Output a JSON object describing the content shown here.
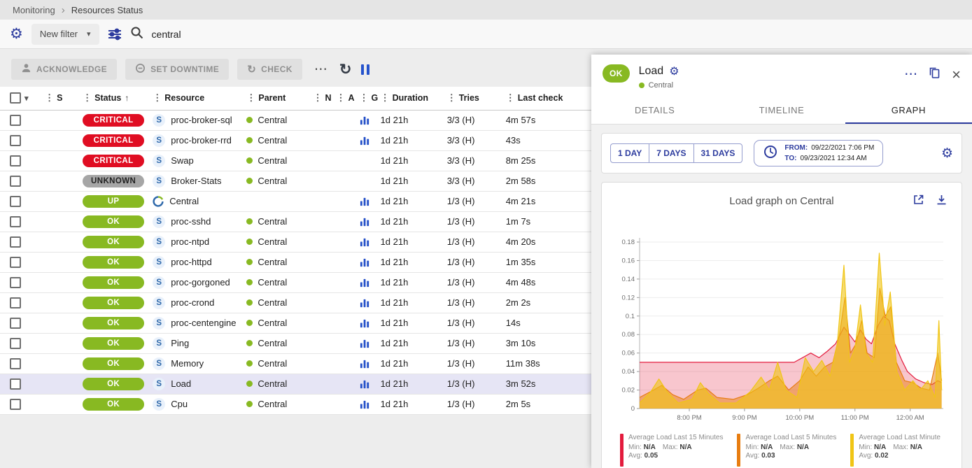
{
  "breadcrumb": {
    "items": [
      "Monitoring",
      "Resources Status"
    ]
  },
  "filter": {
    "preset_label": "New filter",
    "search_value": "central"
  },
  "toolbar": {
    "acknowledge": "ACKNOWLEDGE",
    "set_downtime": "SET DOWNTIME",
    "check": "CHECK"
  },
  "icons": {
    "settings_gear": "⚙",
    "more_horizontal": "⋯",
    "refresh": "↻",
    "caret_down": "▾",
    "drag_dots": "⋮",
    "sort_asc": "↑",
    "breadcrumb_chevron": "›",
    "close": "×"
  },
  "colors": {
    "accent_blue": "#2c3b9e",
    "status_ok_green": "#88b922",
    "status_critical_red": "#e00d22",
    "status_unknown_gray": "#a6a6a6",
    "selected_row": "#e6e5f5",
    "series_red": "#e31b3d",
    "series_orange": "#e87d10",
    "series_yellow": "#f0c515"
  },
  "table": {
    "columns": [
      {
        "id": "sev",
        "label": "S"
      },
      {
        "id": "status",
        "label": "Status",
        "sorted": "asc"
      },
      {
        "id": "res",
        "label": "Resource"
      },
      {
        "id": "parent",
        "label": "Parent"
      },
      {
        "id": "n",
        "label": "N"
      },
      {
        "id": "a",
        "label": "A"
      },
      {
        "id": "g",
        "label": "G"
      },
      {
        "id": "dur",
        "label": "Duration"
      },
      {
        "id": "tries",
        "label": "Tries"
      },
      {
        "id": "last",
        "label": "Last check"
      }
    ],
    "rows": [
      {
        "status": "CRITICAL",
        "kind": "critical",
        "type": "service",
        "resource": "proc-broker-sql",
        "parent": "Central",
        "graph": true,
        "duration": "1d 21h",
        "tries": "3/3 (H)",
        "last_check": "4m 57s",
        "selected": false
      },
      {
        "status": "CRITICAL",
        "kind": "critical",
        "type": "service",
        "resource": "proc-broker-rrd",
        "parent": "Central",
        "graph": true,
        "duration": "1d 21h",
        "tries": "3/3 (H)",
        "last_check": "43s",
        "selected": false
      },
      {
        "status": "CRITICAL",
        "kind": "critical",
        "type": "service",
        "resource": "Swap",
        "parent": "Central",
        "graph": false,
        "duration": "1d 21h",
        "tries": "3/3 (H)",
        "last_check": "8m 25s",
        "selected": false
      },
      {
        "status": "UNKNOWN",
        "kind": "unknown",
        "type": "service",
        "resource": "Broker-Stats",
        "parent": "Central",
        "graph": false,
        "duration": "1d 21h",
        "tries": "3/3 (H)",
        "last_check": "2m 58s",
        "selected": false
      },
      {
        "status": "UP",
        "kind": "up",
        "type": "host",
        "resource": "Central",
        "parent": "",
        "graph": true,
        "duration": "1d 21h",
        "tries": "1/3 (H)",
        "last_check": "4m 21s",
        "selected": false
      },
      {
        "status": "OK",
        "kind": "ok",
        "type": "service",
        "resource": "proc-sshd",
        "parent": "Central",
        "graph": true,
        "duration": "1d 21h",
        "tries": "1/3 (H)",
        "last_check": "1m 7s",
        "selected": false
      },
      {
        "status": "OK",
        "kind": "ok",
        "type": "service",
        "resource": "proc-ntpd",
        "parent": "Central",
        "graph": true,
        "duration": "1d 21h",
        "tries": "1/3 (H)",
        "last_check": "4m 20s",
        "selected": false
      },
      {
        "status": "OK",
        "kind": "ok",
        "type": "service",
        "resource": "proc-httpd",
        "parent": "Central",
        "graph": true,
        "duration": "1d 21h",
        "tries": "1/3 (H)",
        "last_check": "1m 35s",
        "selected": false
      },
      {
        "status": "OK",
        "kind": "ok",
        "type": "service",
        "resource": "proc-gorgoned",
        "parent": "Central",
        "graph": true,
        "duration": "1d 21h",
        "tries": "1/3 (H)",
        "last_check": "4m 48s",
        "selected": false
      },
      {
        "status": "OK",
        "kind": "ok",
        "type": "service",
        "resource": "proc-crond",
        "parent": "Central",
        "graph": true,
        "duration": "1d 21h",
        "tries": "1/3 (H)",
        "last_check": "2m 2s",
        "selected": false
      },
      {
        "status": "OK",
        "kind": "ok",
        "type": "service",
        "resource": "proc-centengine",
        "parent": "Central",
        "graph": true,
        "duration": "1d 21h",
        "tries": "1/3 (H)",
        "last_check": "14s",
        "selected": false
      },
      {
        "status": "OK",
        "kind": "ok",
        "type": "service",
        "resource": "Ping",
        "parent": "Central",
        "graph": true,
        "duration": "1d 21h",
        "tries": "1/3 (H)",
        "last_check": "3m 10s",
        "selected": false
      },
      {
        "status": "OK",
        "kind": "ok",
        "type": "service",
        "resource": "Memory",
        "parent": "Central",
        "graph": true,
        "duration": "1d 21h",
        "tries": "1/3 (H)",
        "last_check": "11m 38s",
        "selected": false
      },
      {
        "status": "OK",
        "kind": "ok",
        "type": "service",
        "resource": "Load",
        "parent": "Central",
        "graph": true,
        "duration": "1d 21h",
        "tries": "1/3 (H)",
        "last_check": "3m 52s",
        "selected": true
      },
      {
        "status": "OK",
        "kind": "ok",
        "type": "service",
        "resource": "Cpu",
        "parent": "Central",
        "graph": true,
        "duration": "1d 21h",
        "tries": "1/3 (H)",
        "last_check": "2m 5s",
        "selected": false
      }
    ]
  },
  "panel": {
    "status": "OK",
    "title": "Load",
    "parent": "Central",
    "tabs": [
      "DETAILS",
      "TIMELINE",
      "GRAPH"
    ],
    "active_tab_index": 2,
    "periods": [
      "1 DAY",
      "7 DAYS",
      "31 DAYS"
    ],
    "from_label": "FROM:",
    "from_value": "09/22/2021 7:06 PM",
    "to_label": "TO:",
    "to_value": "09/23/2021 12:34 AM",
    "graph_title": "Load graph on Central",
    "legend_labels": {
      "min": "Min:",
      "max": "Max:",
      "avg": "Avg:"
    },
    "legend": [
      {
        "name": "Average Load Last 15 Minutes",
        "color": "#e31b3d",
        "min": "N/A",
        "max": "N/A",
        "avg": "0.05"
      },
      {
        "name": "Average Load Last 5 Minutes",
        "color": "#e87d10",
        "min": "N/A",
        "max": "N/A",
        "avg": "0.03"
      },
      {
        "name": "Average Load Last Minute",
        "color": "#f0c515",
        "min": "N/A",
        "max": "N/A",
        "avg": "0.02"
      }
    ]
  },
  "chart_data": {
    "type": "area",
    "title": "Load graph on Central",
    "xlabel": "",
    "ylabel": "",
    "x_unit": "decimal hours (24h clock, 24+ = after midnight)",
    "x_range": [
      19.1,
      24.6
    ],
    "ylim": [
      0,
      0.18
    ],
    "grid": true,
    "legend_position": "bottom",
    "y_ticks": [
      0,
      0.02,
      0.04,
      0.06,
      0.08,
      0.1,
      0.12,
      0.14,
      0.16,
      0.18
    ],
    "x_ticks": [
      {
        "v": 20,
        "label": "8:00 PM"
      },
      {
        "v": 21,
        "label": "9:00 PM"
      },
      {
        "v": 22,
        "label": "10:00 PM"
      },
      {
        "v": 23,
        "label": "11:00 PM"
      },
      {
        "v": 24,
        "label": "12:00 AM"
      }
    ],
    "series": [
      {
        "name": "Average Load Last 15 Minutes",
        "color": "#e31b3d",
        "fill_opacity": 0.25,
        "points": [
          [
            19.1,
            0.05
          ],
          [
            19.5,
            0.05
          ],
          [
            20,
            0.05
          ],
          [
            20.5,
            0.05
          ],
          [
            21,
            0.05
          ],
          [
            21.5,
            0.05
          ],
          [
            21.9,
            0.05
          ],
          [
            22.05,
            0.055
          ],
          [
            22.2,
            0.06
          ],
          [
            22.35,
            0.055
          ],
          [
            22.5,
            0.062
          ],
          [
            22.65,
            0.07
          ],
          [
            22.8,
            0.088
          ],
          [
            22.9,
            0.08
          ],
          [
            23,
            0.072
          ],
          [
            23.1,
            0.085
          ],
          [
            23.2,
            0.075
          ],
          [
            23.3,
            0.07
          ],
          [
            23.42,
            0.09
          ],
          [
            23.52,
            0.1
          ],
          [
            23.62,
            0.095
          ],
          [
            23.72,
            0.07
          ],
          [
            23.85,
            0.052
          ],
          [
            23.95,
            0.04
          ],
          [
            24.1,
            0.032
          ],
          [
            24.25,
            0.028
          ],
          [
            24.4,
            0.026
          ],
          [
            24.5,
            0.03
          ],
          [
            24.57,
            0.028
          ]
        ]
      },
      {
        "name": "Average Load Last 5 Minutes",
        "color": "#e87d10",
        "fill_opacity": 0.5,
        "points": [
          [
            19.1,
            0.012
          ],
          [
            19.35,
            0.02
          ],
          [
            19.5,
            0.025
          ],
          [
            19.7,
            0.015
          ],
          [
            19.9,
            0.01
          ],
          [
            20.15,
            0.02
          ],
          [
            20.3,
            0.022
          ],
          [
            20.5,
            0.012
          ],
          [
            20.8,
            0.01
          ],
          [
            21.05,
            0.015
          ],
          [
            21.25,
            0.022
          ],
          [
            21.45,
            0.03
          ],
          [
            21.6,
            0.035
          ],
          [
            21.8,
            0.02
          ],
          [
            22,
            0.03
          ],
          [
            22.15,
            0.045
          ],
          [
            22.3,
            0.035
          ],
          [
            22.45,
            0.045
          ],
          [
            22.6,
            0.05
          ],
          [
            22.72,
            0.08
          ],
          [
            22.82,
            0.12
          ],
          [
            22.92,
            0.06
          ],
          [
            23.02,
            0.07
          ],
          [
            23.12,
            0.095
          ],
          [
            23.22,
            0.06
          ],
          [
            23.35,
            0.055
          ],
          [
            23.45,
            0.13
          ],
          [
            23.55,
            0.1
          ],
          [
            23.65,
            0.11
          ],
          [
            23.75,
            0.05
          ],
          [
            23.9,
            0.03
          ],
          [
            24.05,
            0.028
          ],
          [
            24.2,
            0.022
          ],
          [
            24.35,
            0.02
          ],
          [
            24.5,
            0.06
          ],
          [
            24.57,
            0.03
          ]
        ]
      },
      {
        "name": "Average Load Last Minute",
        "color": "#f0c515",
        "fill_opacity": 0.6,
        "points": [
          [
            19.1,
            0.006
          ],
          [
            19.3,
            0.018
          ],
          [
            19.45,
            0.032
          ],
          [
            19.6,
            0.018
          ],
          [
            19.8,
            0.006
          ],
          [
            20.05,
            0.01
          ],
          [
            20.2,
            0.028
          ],
          [
            20.35,
            0.016
          ],
          [
            20.55,
            0.006
          ],
          [
            20.85,
            0.006
          ],
          [
            21.1,
            0.018
          ],
          [
            21.3,
            0.034
          ],
          [
            21.45,
            0.02
          ],
          [
            21.6,
            0.05
          ],
          [
            21.75,
            0.02
          ],
          [
            21.95,
            0.012
          ],
          [
            22.1,
            0.055
          ],
          [
            22.25,
            0.04
          ],
          [
            22.4,
            0.052
          ],
          [
            22.55,
            0.035
          ],
          [
            22.68,
            0.07
          ],
          [
            22.8,
            0.155
          ],
          [
            22.9,
            0.05
          ],
          [
            23,
            0.065
          ],
          [
            23.1,
            0.112
          ],
          [
            23.2,
            0.06
          ],
          [
            23.32,
            0.05
          ],
          [
            23.44,
            0.168
          ],
          [
            23.54,
            0.09
          ],
          [
            23.64,
            0.126
          ],
          [
            23.76,
            0.04
          ],
          [
            23.9,
            0.02
          ],
          [
            24.05,
            0.03
          ],
          [
            24.18,
            0.02
          ],
          [
            24.32,
            0.03
          ],
          [
            24.45,
            0.012
          ],
          [
            24.52,
            0.095
          ],
          [
            24.57,
            0.02
          ]
        ]
      }
    ]
  }
}
